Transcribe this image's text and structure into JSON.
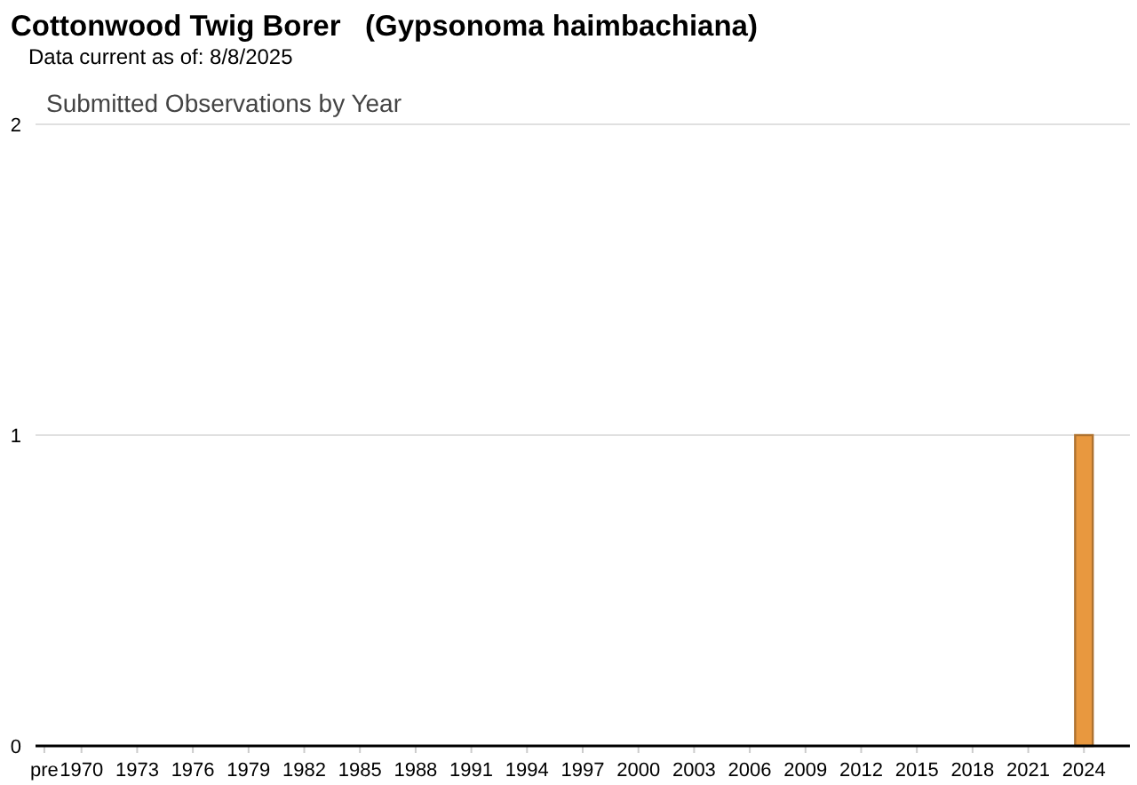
{
  "chart_data": {
    "type": "bar",
    "title": "Cottonwood Twig Borer   (Gypsonoma haimbachiana)",
    "subtitle": "Submitted Observations by Year",
    "annotations": [
      "Data current as of: 8/8/2025"
    ],
    "categories": [
      "pre",
      null,
      "1970",
      null,
      null,
      "1973",
      null,
      null,
      "1976",
      null,
      null,
      "1979",
      null,
      null,
      "1982",
      null,
      null,
      "1985",
      null,
      null,
      "1988",
      null,
      null,
      "1991",
      null,
      null,
      "1994",
      null,
      null,
      "1997",
      null,
      null,
      "2000",
      null,
      null,
      "2003",
      null,
      null,
      "2006",
      null,
      null,
      "2009",
      null,
      null,
      "2012",
      null,
      null,
      "2015",
      null,
      null,
      "2018",
      null,
      null,
      "2021",
      null,
      null,
      "2024",
      null,
      null
    ],
    "values": [
      0,
      0,
      0,
      0,
      0,
      0,
      0,
      0,
      0,
      0,
      0,
      0,
      0,
      0,
      0,
      0,
      0,
      0,
      0,
      0,
      0,
      0,
      0,
      0,
      0,
      0,
      0,
      0,
      0,
      0,
      0,
      0,
      0,
      0,
      0,
      0,
      0,
      0,
      0,
      0,
      0,
      0,
      0,
      0,
      0,
      0,
      0,
      0,
      0,
      0,
      0,
      0,
      0,
      0,
      0,
      0,
      1,
      0,
      0
    ],
    "color": "#e8983f",
    "ylim": [
      0,
      2
    ],
    "yticks": [
      0,
      1,
      2
    ],
    "grid": "y"
  }
}
